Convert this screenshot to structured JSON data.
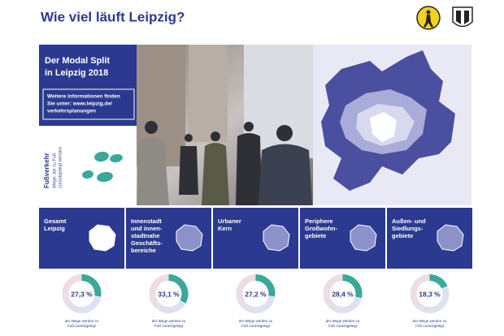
{
  "header": {
    "title": "Wie viel läuft Leipzig?"
  },
  "intro": {
    "title_lines": [
      "Der Modal Split",
      "in Leipzig 2018"
    ],
    "info_lines": [
      "Weitere Informationen finden",
      "Sie unter: www.leipzig.de/",
      "verkehrsplanungen"
    ]
  },
  "mode": {
    "name": "Fußverkehr",
    "description_lines": [
      "Wege, die zu Fuß",
      "zurückgelegt werden"
    ]
  },
  "regions": [
    {
      "name_lines": [
        "Gesamt",
        "Leipzig"
      ],
      "value": 27.3,
      "value_label": "27,3 %",
      "caption_lines": [
        "der Wege werden zu",
        "Fuß zurückgelegt"
      ]
    },
    {
      "name_lines": [
        "Innenstadt",
        "und innen-",
        "stadtnahe",
        "Geschäfts-",
        "bereiche"
      ],
      "value": 33.1,
      "value_label": "33,1 %",
      "caption_lines": [
        "der Wege werden zu",
        "Fuß zurückgelegt"
      ]
    },
    {
      "name_lines": [
        "Urbaner",
        "Kern"
      ],
      "value": 27.2,
      "value_label": "27,2 %",
      "caption_lines": [
        "der Wege werden zu",
        "Fuß zurückgelegt"
      ]
    },
    {
      "name_lines": [
        "Periphere",
        "Großwohn-",
        "gebiete"
      ],
      "value": 28.4,
      "value_label": "28,4 %",
      "caption_lines": [
        "der Wege werden zu",
        "Fuß zurückgelegt"
      ]
    },
    {
      "name_lines": [
        "Außen- und",
        "Siedlungs-",
        "gebiete"
      ],
      "value": 18.3,
      "value_label": "18,3 %",
      "caption_lines": [
        "der Wege werden zu",
        "Fuß zurückgelegt"
      ]
    }
  ]
}
